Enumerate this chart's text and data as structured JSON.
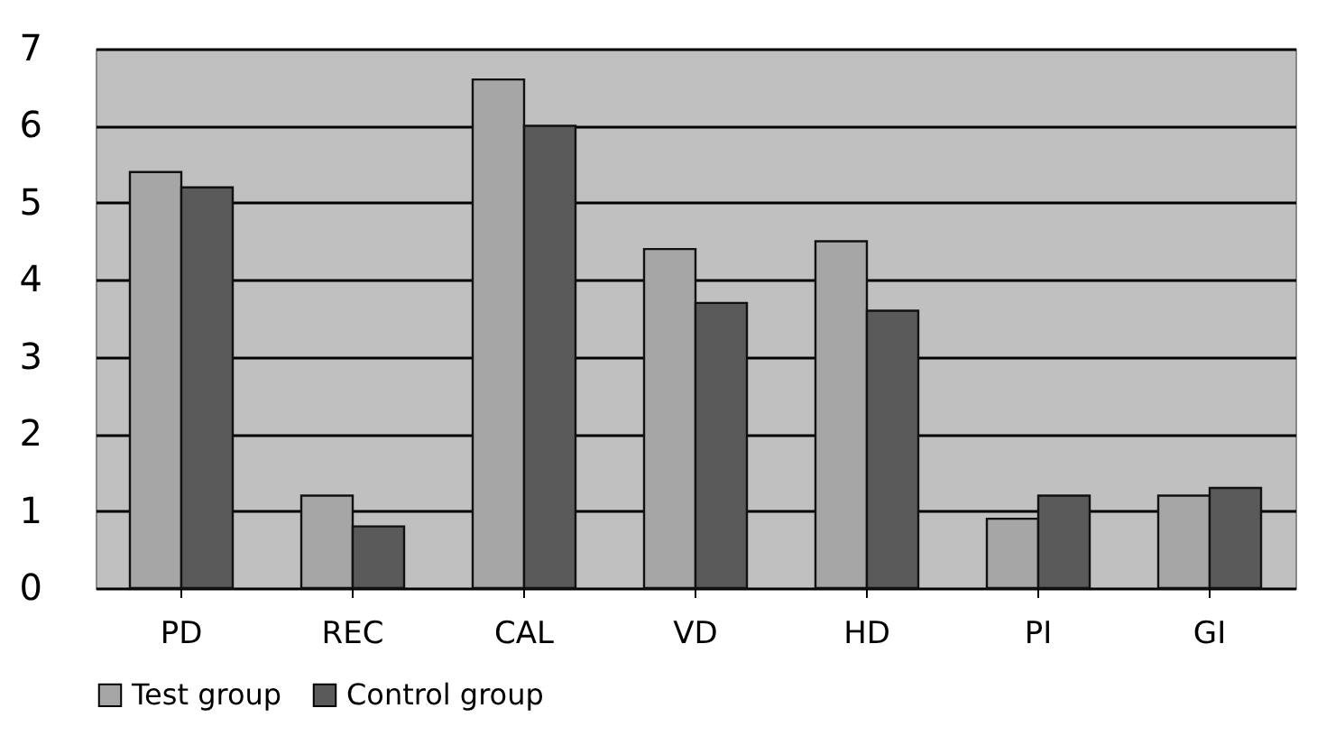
{
  "chart_data": {
    "type": "bar",
    "categories": [
      "PD",
      "REC",
      "CAL",
      "VD",
      "HD",
      "PI",
      "GI"
    ],
    "series": [
      {
        "name": "Test group",
        "color": "#a6a6a6",
        "values": [
          5.4,
          1.2,
          6.6,
          4.4,
          4.5,
          0.9,
          1.2
        ]
      },
      {
        "name": "Control group",
        "color": "#5a5a5a",
        "values": [
          5.2,
          0.8,
          6.0,
          3.7,
          3.6,
          1.2,
          1.3
        ]
      }
    ],
    "ylim": [
      0,
      7
    ],
    "yticks": [
      0,
      1,
      2,
      3,
      4,
      5,
      6,
      7
    ],
    "grid": "y",
    "legend": "bottom"
  }
}
